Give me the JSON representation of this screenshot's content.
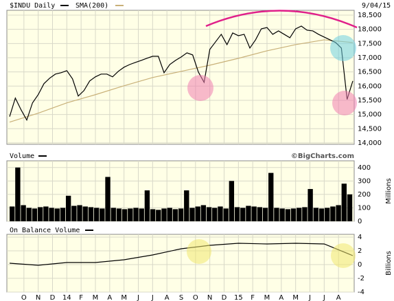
{
  "chart_data": [
    {
      "type": "line",
      "date": "9/04/15",
      "series": [
        {
          "name": "$INDU Daily",
          "color": "#000000",
          "values": [
            14926,
            15578,
            15167,
            14805,
            15409,
            15699,
            16085,
            16278,
            16423,
            16471,
            16544,
            16254,
            15650,
            15844,
            16182,
            16327,
            16423,
            16423,
            16327,
            16520,
            16665,
            16761,
            16834,
            16906,
            16979,
            17051,
            17051,
            16471,
            16761,
            16906,
            17027,
            17172,
            17099,
            16496,
            16133,
            17293,
            17558,
            17824,
            17462,
            17872,
            17776,
            17824,
            17341,
            17631,
            18017,
            18065,
            17824,
            17945,
            17824,
            17703,
            18017,
            18114,
            17969,
            17945,
            17824,
            17727,
            17631,
            17534,
            17341,
            15530,
            16182
          ]
        },
        {
          "name": "SMA(200)",
          "color": "#c8b078",
          "values": [
            14733,
            15046,
            15409,
            15699,
            16013,
            16302,
            16520,
            16737,
            16979,
            17244,
            17462,
            17631,
            17534
          ]
        }
      ],
      "ylim": [
        13950,
        18670
      ],
      "yticks": [
        {
          "value": 14000,
          "label": "14,000"
        },
        {
          "value": 14500,
          "label": "14,500"
        },
        {
          "value": 15000,
          "label": "15,000"
        },
        {
          "value": 15500,
          "label": "15,500"
        },
        {
          "value": 16000,
          "label": "16,000"
        },
        {
          "value": 16500,
          "label": "16,500"
        },
        {
          "value": 17000,
          "label": "17,000"
        },
        {
          "value": 17500,
          "label": "17,500"
        },
        {
          "value": 18000,
          "label": "18,000"
        },
        {
          "value": 18500,
          "label": "18,500"
        }
      ],
      "grid": true
    },
    {
      "type": "bar",
      "title": "Volume",
      "annotation": "©BigCharts.com",
      "y_label": "Millions",
      "color": "#000000",
      "values": [
        110,
        400,
        120,
        100,
        95,
        105,
        110,
        100,
        95,
        100,
        190,
        115,
        120,
        110,
        105,
        100,
        95,
        330,
        100,
        95,
        90,
        95,
        100,
        95,
        230,
        90,
        85,
        95,
        100,
        90,
        95,
        230,
        100,
        110,
        120,
        105,
        100,
        110,
        95,
        300,
        105,
        100,
        115,
        110,
        105,
        100,
        360,
        100,
        95,
        90,
        95,
        100,
        105,
        240,
        100,
        95,
        100,
        110,
        120,
        280,
        200
      ],
      "ylim": [
        0,
        450
      ],
      "yticks": [
        0,
        100,
        200,
        300,
        400
      ],
      "grid": true
    },
    {
      "type": "line",
      "title": "On Balance Volume",
      "y_label": "Billions",
      "color": "#000000",
      "values": [
        0.2,
        -0.1,
        0.3,
        0.3,
        0.7,
        1.4,
        2.3,
        2.8,
        3.1,
        3.0,
        3.1,
        3.0,
        1.3
      ],
      "ylim": [
        -4,
        4.4
      ],
      "yticks": [
        -4,
        -2,
        0,
        2,
        4
      ],
      "grid": true,
      "xtick_labels": [
        "O",
        "N",
        "D",
        "14",
        "F",
        "M",
        "A",
        "M",
        "J",
        "J",
        "A",
        "S",
        "O",
        "N",
        "D",
        "15",
        "F",
        "M",
        "A",
        "M",
        "J",
        "J",
        "A"
      ]
    }
  ]
}
